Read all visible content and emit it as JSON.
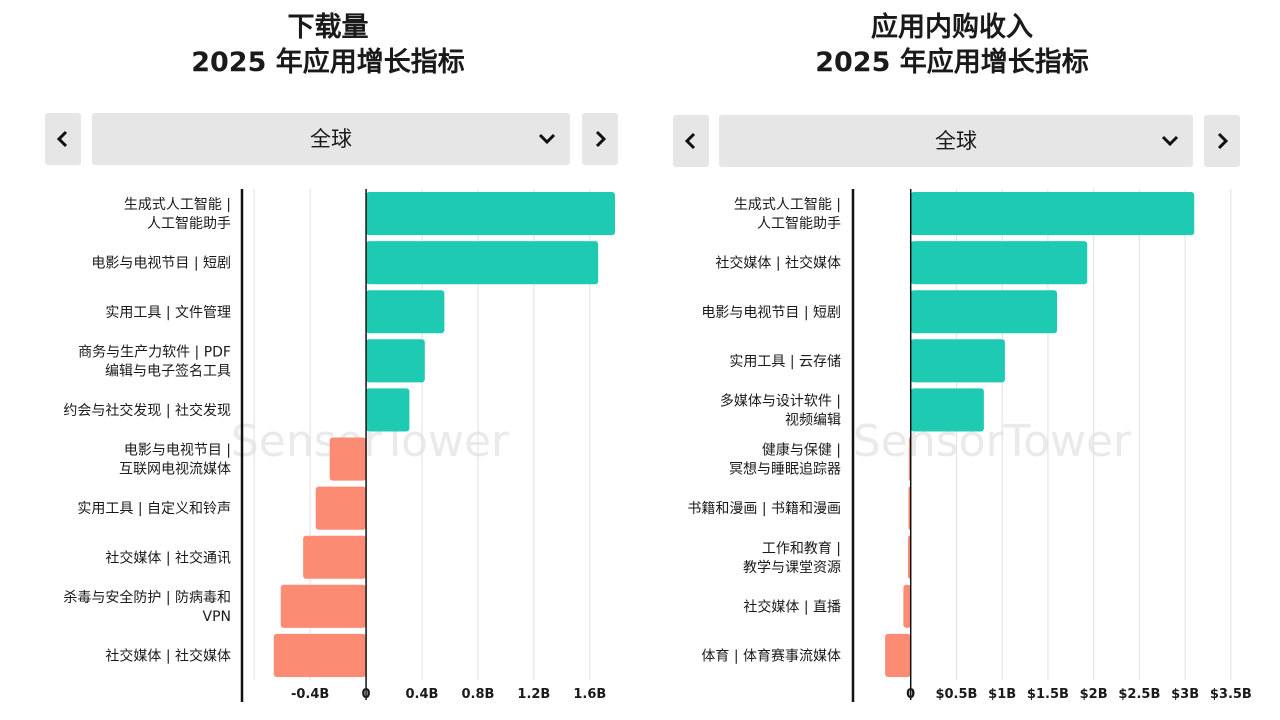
{
  "watermark": "SensorTower",
  "colors": {
    "positive": "#1ecbb2",
    "negative": "#fb8b73",
    "grid": "#e0e0e0",
    "axis": "#111111",
    "button_bg": "#e6e6e6"
  },
  "left": {
    "title_line1": "下载量",
    "title_line2": "2025 年应用增长指标",
    "prev_icon": "chevron-left-icon",
    "next_icon": "chevron-right-icon",
    "region": "全球",
    "chevron": "chevron-down-icon"
  },
  "right": {
    "title_line1": "应用内购收入",
    "title_line2": "2025 年应用增长指标",
    "prev_icon": "chevron-left-icon",
    "next_icon": "chevron-right-icon",
    "region": "全球",
    "chevron": "chevron-down-icon"
  },
  "chart_data": [
    {
      "type": "bar",
      "orientation": "horizontal",
      "title": "下载量 2025 年应用增长指标",
      "unit": "B",
      "categories": [
        [
          "生成式人工智能 |",
          "人工智能助手"
        ],
        [
          "电影与电视节目 | 短剧"
        ],
        [
          "实用工具 | 文件管理"
        ],
        [
          "商务与生产力软件 | PDF",
          "编辑与电子签名工具"
        ],
        [
          "约会与社交发现 | 社交发现"
        ],
        [
          "电影与电视节目 |",
          "互联网电视流媒体"
        ],
        [
          "实用工具 | 自定义和铃声"
        ],
        [
          "社交媒体 | 社交通讯"
        ],
        [
          "杀毒与安全防护 | 防病毒和",
          "VPN"
        ],
        [
          "社交媒体 | 社交媒体"
        ]
      ],
      "values": [
        1.78,
        1.66,
        0.56,
        0.42,
        0.31,
        -0.26,
        -0.36,
        -0.45,
        -0.61,
        -0.66
      ],
      "xlim": [
        -0.88,
        1.78
      ],
      "ticks": [
        -0.4,
        0,
        0.4,
        0.8,
        1.2,
        1.6
      ],
      "tick_labels": [
        "-0.4B",
        "0",
        "0.4B",
        "0.8B",
        "1.2B",
        "1.6B"
      ],
      "gridlines": [
        -0.8,
        -0.4,
        0.4,
        0.8,
        1.2,
        1.6
      ]
    },
    {
      "type": "bar",
      "orientation": "horizontal",
      "title": "应用内购收入 2025 年应用增长指标",
      "unit": "$",
      "categories": [
        [
          "生成式人工智能 |",
          "人工智能助手"
        ],
        [
          "社交媒体 | 社交媒体"
        ],
        [
          "电影与电视节目 | 短剧"
        ],
        [
          "实用工具 | 云存储"
        ],
        [
          "多媒体与设计软件 |",
          "视频编辑"
        ],
        [
          "健康与保健 |",
          "冥想与睡眠追踪器"
        ],
        [
          "书籍和漫画 | 书籍和漫画"
        ],
        [
          "工作和教育 |",
          "教学与课堂资源"
        ],
        [
          "社交媒体 | 直播"
        ],
        [
          "体育 | 体育赛事流媒体"
        ]
      ],
      "values": [
        3.1,
        1.93,
        1.6,
        1.03,
        0.8,
        -0.02,
        -0.025,
        -0.03,
        -0.08,
        -0.28
      ],
      "xlim": [
        -0.62,
        3.6
      ],
      "ticks": [
        0,
        0.5,
        1,
        1.5,
        2,
        2.5,
        3,
        3.5
      ],
      "tick_labels": [
        "0",
        "$0.5B",
        "$1B",
        "$1.5B",
        "$2B",
        "$2.5B",
        "$3B",
        "$3.5B"
      ],
      "gridlines": [
        0.5,
        1,
        1.5,
        2,
        2.5,
        3,
        3.5
      ]
    }
  ]
}
